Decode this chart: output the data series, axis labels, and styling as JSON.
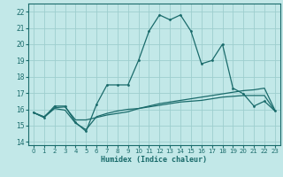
{
  "title": "",
  "xlabel": "Humidex (Indice chaleur)",
  "bg_color": "#c2e8e8",
  "grid_color": "#9ecece",
  "line_color": "#1a6b6b",
  "xlim": [
    -0.5,
    23.5
  ],
  "ylim": [
    13.8,
    22.5
  ],
  "yticks": [
    14,
    15,
    16,
    17,
    18,
    19,
    20,
    21,
    22
  ],
  "xticks": [
    0,
    1,
    2,
    3,
    4,
    5,
    6,
    7,
    8,
    9,
    10,
    11,
    12,
    13,
    14,
    15,
    16,
    17,
    18,
    19,
    20,
    21,
    22,
    23
  ],
  "series1_x": [
    0,
    1,
    2,
    3,
    4,
    5,
    6,
    7,
    8,
    9,
    10,
    11,
    12,
    13,
    14,
    15,
    16,
    17,
    18,
    19,
    20,
    21,
    22,
    23
  ],
  "series1_y": [
    15.8,
    15.5,
    16.2,
    16.2,
    15.2,
    14.65,
    16.3,
    17.5,
    17.5,
    17.5,
    19.0,
    20.8,
    21.8,
    21.5,
    21.8,
    20.8,
    18.8,
    19.0,
    20.0,
    17.3,
    16.95,
    16.2,
    16.5,
    15.9
  ],
  "series2_x": [
    0,
    1,
    2,
    3,
    4,
    5,
    6,
    7,
    8,
    9,
    10,
    11,
    12,
    13,
    14,
    15,
    16,
    17,
    18,
    19,
    20,
    21,
    22,
    23
  ],
  "series2_y": [
    15.8,
    15.55,
    16.1,
    16.15,
    15.35,
    15.35,
    15.5,
    15.65,
    15.75,
    15.85,
    16.05,
    16.2,
    16.35,
    16.45,
    16.55,
    16.65,
    16.75,
    16.85,
    16.95,
    17.05,
    17.15,
    17.2,
    17.3,
    15.95
  ],
  "series3_x": [
    0,
    1,
    2,
    3,
    4,
    5,
    6,
    7,
    8,
    9,
    10,
    11,
    12,
    13,
    14,
    15,
    16,
    17,
    18,
    19,
    20,
    21,
    22,
    23
  ],
  "series3_y": [
    15.8,
    15.5,
    16.05,
    15.95,
    15.15,
    14.75,
    15.55,
    15.75,
    15.9,
    16.0,
    16.05,
    16.15,
    16.25,
    16.35,
    16.45,
    16.5,
    16.55,
    16.65,
    16.75,
    16.8,
    16.85,
    16.85,
    16.85,
    15.9
  ]
}
